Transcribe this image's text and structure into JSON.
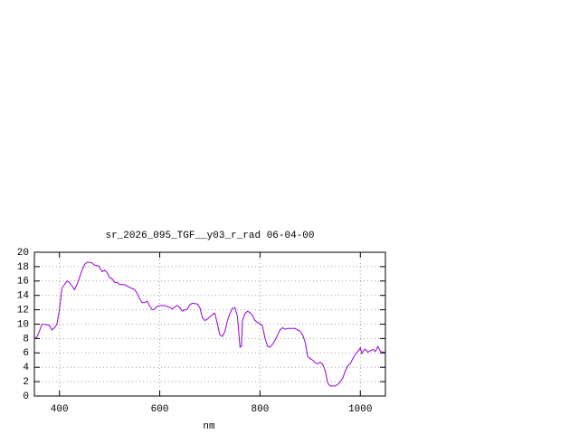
{
  "chart_data": {
    "type": "line",
    "title": "sr_2026_095_TGF__y03_r_rad 06-04-00",
    "x_label": "nm",
    "series": [
      {
        "color": "#9400d3",
        "x": [
          350,
          355,
          360,
          365,
          375,
          380,
          385,
          390,
          395,
          400,
          405,
          410,
          415,
          420,
          425,
          430,
          435,
          440,
          445,
          450,
          455,
          460,
          465,
          470,
          478,
          485,
          490,
          495,
          500,
          505,
          510,
          515,
          520,
          530,
          540,
          550,
          555,
          560,
          565,
          570,
          575,
          580,
          585,
          590,
          595,
          600,
          610,
          620,
          625,
          630,
          635,
          640,
          645,
          650,
          655,
          660,
          665,
          675,
          680,
          685,
          690,
          695,
          700,
          705,
          710,
          715,
          720,
          725,
          730,
          735,
          740,
          745,
          750,
          755,
          760,
          763,
          765,
          770,
          775,
          780,
          785,
          790,
          795,
          800,
          805,
          810,
          815,
          820,
          825,
          830,
          835,
          840,
          845,
          850,
          855,
          860,
          870,
          875,
          880,
          885,
          890,
          895,
          900,
          905,
          910,
          915,
          920,
          925,
          930,
          935,
          940,
          945,
          950,
          955,
          960,
          965,
          970,
          975,
          980,
          985,
          990,
          995,
          1000,
          1003,
          1007,
          1010,
          1015,
          1020,
          1025,
          1030,
          1035,
          1040,
          1045,
          1050
        ],
        "values": [
          8,
          8.2,
          9,
          10,
          9.9,
          9.8,
          9.2,
          9.5,
          10,
          12,
          15,
          15.5,
          16,
          15.8,
          15.3,
          14.8,
          15.5,
          16.5,
          17.5,
          18.3,
          18.6,
          18.6,
          18.5,
          18.2,
          18.1,
          17.3,
          17.5,
          17.2,
          16.5,
          16.3,
          15.8,
          15.8,
          15.5,
          15.5,
          15.1,
          14.8,
          14.3,
          13.5,
          13,
          13,
          13.2,
          12.5,
          12,
          12.1,
          12.5,
          12.6,
          12.6,
          12.3,
          12.1,
          12.4,
          12.6,
          12.3,
          11.8,
          12,
          12.1,
          12.7,
          12.9,
          12.8,
          12.3,
          10.9,
          10.5,
          10.7,
          11,
          11.3,
          11.5,
          10,
          8.5,
          8.3,
          9,
          10.5,
          11.5,
          12.2,
          12.3,
          11,
          6.8,
          6.9,
          10.5,
          11.5,
          11.8,
          11.6,
          11.2,
          10.5,
          10.2,
          10.1,
          9.7,
          8,
          6.9,
          6.8,
          7.2,
          7.8,
          8.5,
          9.2,
          9.5,
          9.3,
          9.4,
          9.4,
          9.4,
          9.2,
          9,
          8.5,
          7.5,
          5.5,
          5.2,
          5,
          4.6,
          4.5,
          4.7,
          4.4,
          3.5,
          1.8,
          1.4,
          1.4,
          1.4,
          1.6,
          2,
          2.5,
          3.5,
          4.2,
          4.5,
          5.2,
          5.8,
          6.2,
          6.7,
          5.9,
          6.4,
          6.5,
          6.1,
          6.3,
          6.5,
          6.2,
          6.9,
          6.2,
          6.1,
          6.1
        ]
      }
    ],
    "xlim": [
      350,
      1050
    ],
    "xticks": [
      400,
      600,
      800,
      1000
    ],
    "ylim": [
      0,
      20
    ],
    "yticks": [
      0,
      2,
      4,
      6,
      8,
      10,
      12,
      14,
      16,
      18,
      20
    ],
    "grid": true
  }
}
